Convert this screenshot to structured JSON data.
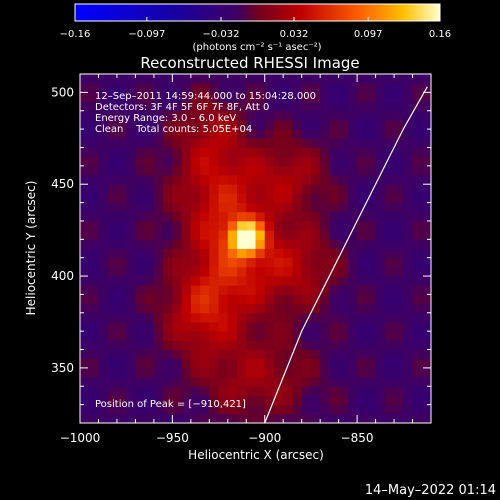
{
  "chart_data": {
    "type": "heatmap",
    "title": "Reconstructed RHESSI Image",
    "xlabel": "Heliocentric X (arcsec)",
    "ylabel": "Heliocentric Y (arcsec)",
    "xlim": [
      -1000,
      -810
    ],
    "ylim": [
      320,
      510
    ],
    "x_ticks": [
      -1000,
      -950,
      -900,
      -850
    ],
    "x_tick_labels": [
      "−1000",
      "−950",
      "−900",
      "−850"
    ],
    "y_ticks": [
      350,
      400,
      450,
      500
    ],
    "y_tick_labels": [
      "350",
      "400",
      "450",
      "500"
    ],
    "colorbar": {
      "range": [
        -0.16,
        0.16
      ],
      "ticks": [
        -0.16,
        -0.097,
        -0.032,
        0.032,
        0.097,
        0.16
      ],
      "tick_labels": [
        "−0.16",
        "−0.097",
        "−0.032",
        "0.032",
        "0.097",
        "0.16"
      ],
      "unit_label": "(photons cm⁻² s⁻¹ asec⁻²)"
    },
    "annotations": [
      "12–Sep–2011 14:59:44.000 to 15:04:28.000",
      "Detectors: 3F 4F 5F 6F 7F 8F, Att 0",
      "Energy Range: 3.0 – 6.0 keV",
      "Clean    Total counts: 5.05E+04"
    ],
    "peak_label": "Position of Peak = [−910,421]",
    "peak": {
      "x": -910,
      "y": 421
    },
    "limb_curve": [
      [
        -900,
        320
      ],
      [
        -880,
        370
      ],
      [
        -860,
        410
      ],
      [
        -840,
        450
      ],
      [
        -825,
        480
      ],
      [
        -812,
        503
      ]
    ],
    "timestamp": "14–May–2022 01:14",
    "sources": [
      {
        "x": -910,
        "y": 421,
        "amp": 0.16,
        "sx": 6,
        "sy": 6
      },
      {
        "x": -915,
        "y": 410,
        "amp": 0.07,
        "sx": 18,
        "sy": 22
      },
      {
        "x": -925,
        "y": 450,
        "amp": 0.05,
        "sx": 18,
        "sy": 20
      },
      {
        "x": -885,
        "y": 455,
        "amp": 0.04,
        "sx": 14,
        "sy": 14
      },
      {
        "x": -935,
        "y": 380,
        "amp": 0.055,
        "sx": 14,
        "sy": 16
      },
      {
        "x": -905,
        "y": 345,
        "amp": 0.04,
        "sx": 22,
        "sy": 16
      },
      {
        "x": -880,
        "y": 405,
        "amp": 0.04,
        "sx": 14,
        "sy": 16
      },
      {
        "x": -930,
        "y": 480,
        "amp": 0.03,
        "sx": 12,
        "sy": 14
      }
    ],
    "background": -0.02
  }
}
